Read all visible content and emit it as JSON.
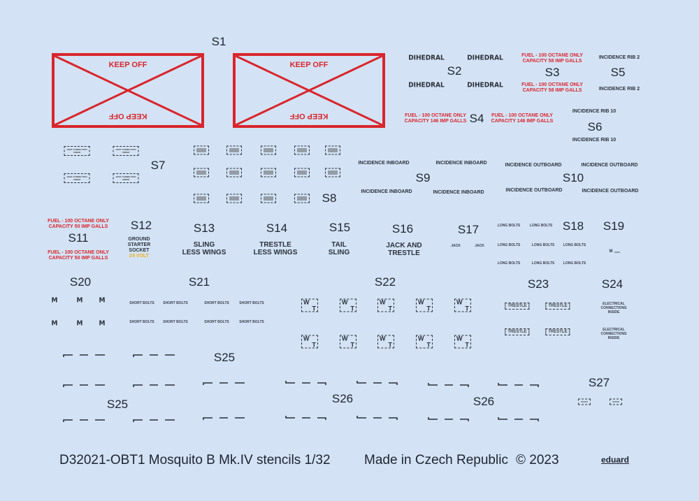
{
  "sheet": {
    "labels": [
      "S1",
      "S2",
      "S3",
      "S4",
      "S5",
      "S6",
      "S7",
      "S8",
      "S9",
      "S10",
      "S11",
      "S12",
      "S13",
      "S14",
      "S15",
      "S16",
      "S17",
      "S18",
      "S19",
      "S20",
      "S21",
      "S22",
      "S23",
      "S24",
      "S25",
      "S25",
      "S26",
      "S26",
      "S27"
    ],
    "keep_off": "KEEP OFF",
    "dihedral": "DIHEDRAL",
    "fuel_58": [
      "FUEL - 100 OCTANE ONLY",
      "CAPACITY 58 IMP GALLS"
    ],
    "fuel_146": [
      "FUEL - 100 OCTANE ONLY",
      "CAPACITY 146 IMP GALLS"
    ],
    "fuel_50": [
      "FUEL - 100 OCTANE ONLY",
      "CAPACITY 50 IMP GALLS"
    ],
    "incidence_rib_2": "INCIDENCE RIB 2",
    "incidence_rib_10": "INCIDENCE  RIB  10",
    "vent": [
      "VENT CONNECTION",
      "UNDER"
    ],
    "incidence_inboard": "INCIDENCE  INBOARD",
    "incidence_outboard": "INCIDENCE  OUTBOARD",
    "ground_starter": [
      "GROUND",
      "STARTER",
      "SOCKET"
    ],
    "volt": "24 VOLT",
    "sling_less_wings": [
      "SLING",
      "LESS WINGS"
    ],
    "trestle_less_wings": [
      "TRESTLE",
      "LESS WINGS"
    ],
    "tail_sling": [
      "TAIL",
      "SLING"
    ],
    "jack_and_trestle": [
      "JACK AND",
      "TRESTLE"
    ],
    "jack": "JACK",
    "long_bolts": "LONG BOLTS",
    "m": "M",
    "short_bolts": "SHORT BOLTS",
    "wt": [
      "W",
      "T"
    ],
    "trestle": "TRESTLE",
    "electrical": [
      "ELECTRICAL",
      "CONNECTIONS",
      "INSIDE"
    ]
  },
  "footer": {
    "title": "D32021-OBT1 Mosquito B Mk.IV stencils 1/32",
    "made_in": "Made in Czech Republic",
    "copyright": "© 2023",
    "brand": "eduard"
  },
  "colors": {
    "background": "#d3e3f5",
    "red": "#d9252c",
    "ink": "#2b303b",
    "yellow": "#f0b020"
  }
}
